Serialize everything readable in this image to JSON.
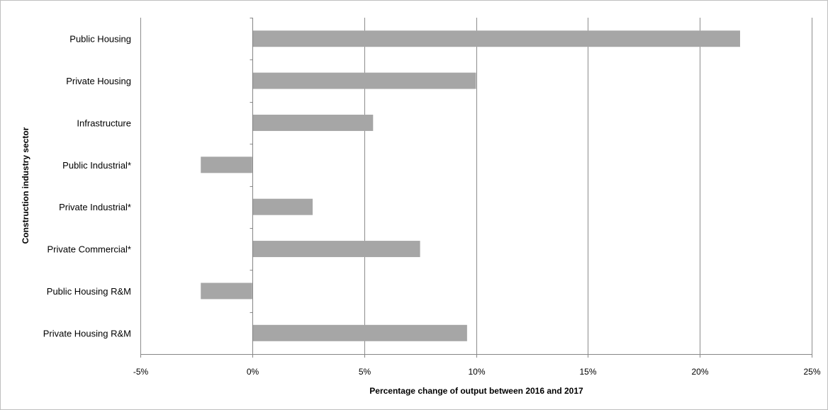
{
  "chart_data": {
    "type": "bar",
    "orientation": "horizontal",
    "categories": [
      "Public Housing",
      "Private Housing",
      "Infrastructure",
      "Public Industrial*",
      "Private Industrial*",
      "Private Commercial*",
      "Public Housing R&M",
      "Private Housing R&M"
    ],
    "values": [
      21.8,
      10.0,
      5.4,
      -2.3,
      2.7,
      7.5,
      -2.3,
      9.6
    ],
    "unit": "%",
    "xlabel": "Percentage change of output between 2016 and 2017",
    "ylabel": "Construction industry sector",
    "xlim": [
      -5,
      25
    ],
    "xticks": [
      -5,
      0,
      5,
      10,
      15,
      20,
      25
    ],
    "xtick_labels": [
      "-5%",
      "0%",
      "5%",
      "10%",
      "15%",
      "20%",
      "25%"
    ],
    "grid": "vertical major gridlines",
    "legend": "none",
    "colors": {
      "bar": "#a6a6a6",
      "grid": "#8c8c8c",
      "axis": "#868686",
      "frame": "#bfbfbf"
    }
  }
}
